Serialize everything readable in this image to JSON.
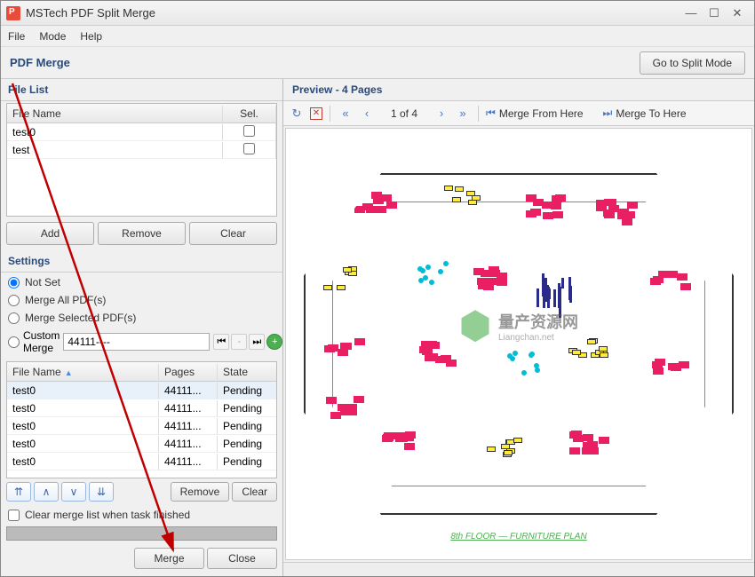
{
  "window": {
    "title": "MSTech PDF Split Merge"
  },
  "menu": {
    "file": "File",
    "mode": "Mode",
    "help": "Help"
  },
  "subheader": {
    "label": "PDF Merge",
    "split_btn": "Go to Split Mode"
  },
  "filelist": {
    "header": "File List",
    "col_name": "File Name",
    "col_sel": "Sel.",
    "rows": [
      {
        "name": "test0",
        "sel": false
      },
      {
        "name": "test",
        "sel": false
      }
    ],
    "add": "Add",
    "remove": "Remove",
    "clear": "Clear"
  },
  "settings": {
    "header": "Settings",
    "notset": "Not Set",
    "mergeall": "Merge All PDF(s)",
    "mergesel": "Merge Selected PDF(s)",
    "custom": "Custom Merge",
    "custom_value": "44111----"
  },
  "mergetable": {
    "col_fn": "File Name",
    "col_pg": "Pages",
    "col_st": "State",
    "rows": [
      {
        "fn": "test0",
        "pg": "44111...",
        "st": "Pending"
      },
      {
        "fn": "test0",
        "pg": "44111...",
        "st": "Pending"
      },
      {
        "fn": "test0",
        "pg": "44111...",
        "st": "Pending"
      },
      {
        "fn": "test0",
        "pg": "44111...",
        "st": "Pending"
      },
      {
        "fn": "test0",
        "pg": "44111...",
        "st": "Pending"
      }
    ],
    "remove": "Remove",
    "clear": "Clear",
    "clear_on_finish": "Clear merge list when task finished"
  },
  "bottom": {
    "merge": "Merge",
    "close": "Close"
  },
  "preview": {
    "header": "Preview - 4 Pages",
    "pager": "1 of 4",
    "from": "Merge From Here",
    "to": "Merge To Here",
    "plan_caption": "8th FLOOR — FURNITURE PLAN"
  },
  "watermark": {
    "main": "量产资源网",
    "sub": "Liangchan.net"
  },
  "colors": {
    "accent": "#4a74c4",
    "header_text": "#2a4a7a",
    "desk": "#e91e63",
    "chair": "#00bcd4",
    "cabinet": "#ffeb3b",
    "partition": "#2a2a8a"
  }
}
